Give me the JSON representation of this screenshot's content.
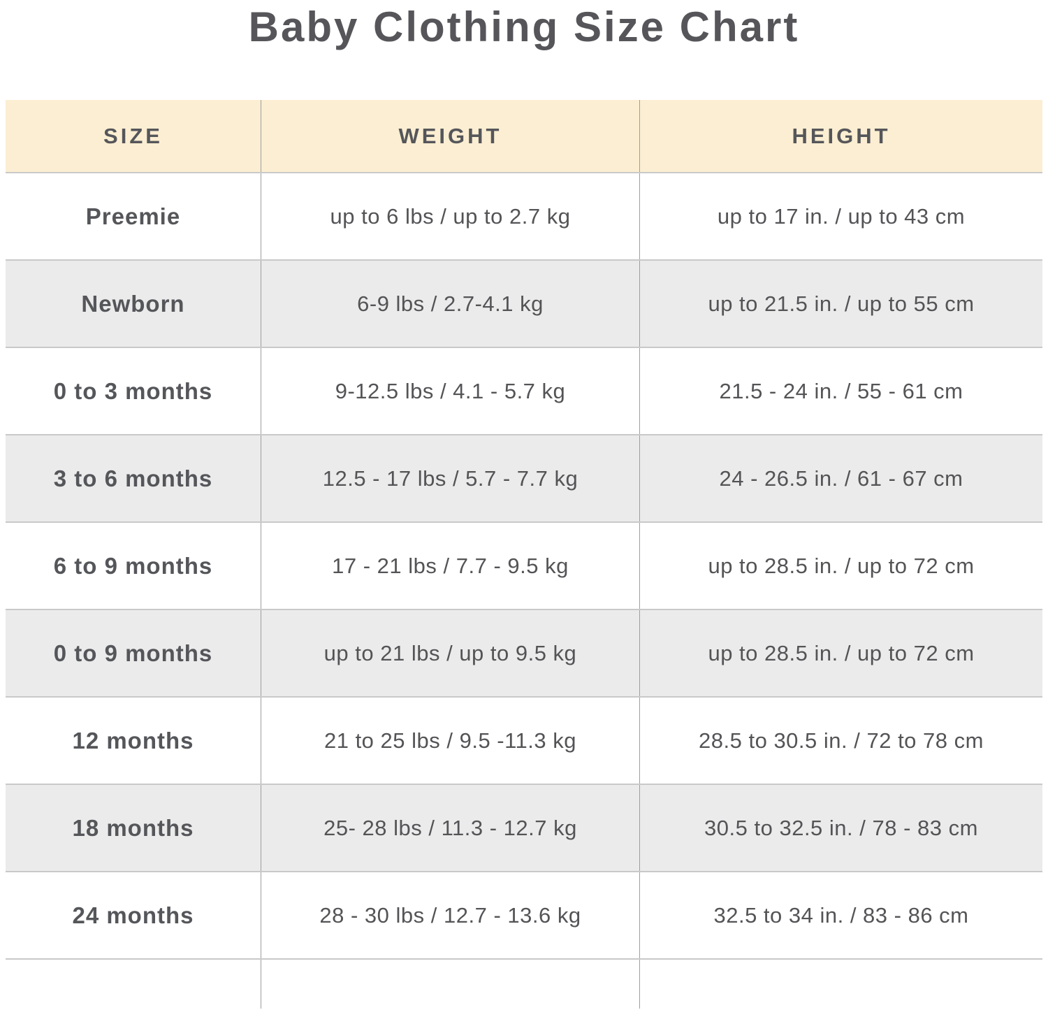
{
  "title": "Baby Clothing Size Chart",
  "chart_data": {
    "type": "table",
    "columns": [
      "SIZE",
      "WEIGHT",
      "HEIGHT"
    ],
    "rows": [
      [
        "Preemie",
        "up to 6 lbs / up to 2.7 kg",
        "up to 17 in. / up to 43 cm"
      ],
      [
        "Newborn",
        "6-9 lbs / 2.7-4.1 kg",
        "up to 21.5 in. / up to 55 cm"
      ],
      [
        "0 to 3 months",
        "9-12.5 lbs / 4.1 - 5.7 kg",
        "21.5 - 24 in. / 55 - 61 cm"
      ],
      [
        "3 to 6 months",
        "12.5 - 17 lbs / 5.7 - 7.7 kg",
        "24 - 26.5 in. / 61 - 67 cm"
      ],
      [
        "6 to 9 months",
        "17 - 21 lbs / 7.7 - 9.5 kg",
        "up to 28.5 in. / up to 72 cm"
      ],
      [
        "0 to 9 months",
        "up to 21 lbs / up to 9.5 kg",
        "up to 28.5 in. / up to 72 cm"
      ],
      [
        "12 months",
        "21 to 25 lbs / 9.5 -11.3 kg",
        "28.5 to 30.5 in. / 72 to 78 cm"
      ],
      [
        "18 months",
        "25- 28 lbs / 11.3 - 12.7 kg",
        "30.5 to 32.5 in. / 78 - 83 cm"
      ],
      [
        "24 months",
        "28 - 30 lbs / 12.7 - 13.6 kg",
        "32.5 to 34 in. / 83 - 86 cm"
      ]
    ]
  },
  "colors": {
    "header_bg": "#FBEED2",
    "alt_row_bg": "#EBEBEB",
    "row_bg": "#FFFFFF",
    "text": "#55565A",
    "divider_vertical": "#9E9E9E",
    "divider_horizontal": "#C9C9C9"
  }
}
